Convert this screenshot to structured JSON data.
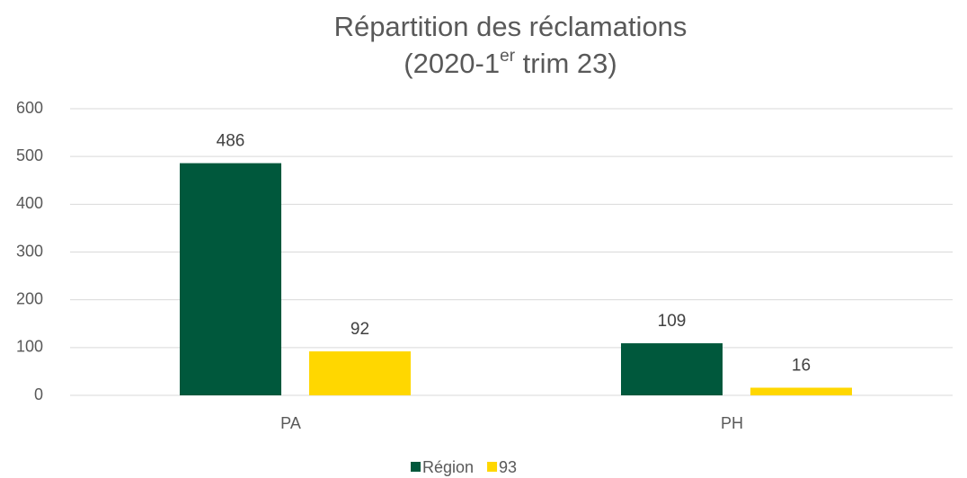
{
  "chart_data": {
    "type": "bar",
    "title": [
      "Répartition des réclamations",
      [
        "(2020-1",
        "er",
        " trim 23)"
      ]
    ],
    "categories": [
      "PA",
      "PH"
    ],
    "series": [
      {
        "name": "Région",
        "color": "#00583c",
        "values": [
          486,
          109
        ]
      },
      {
        "name": "93",
        "color": "#ffd700",
        "values": [
          92,
          16
        ]
      }
    ],
    "ylim": [
      0,
      600
    ],
    "yticks": [
      0,
      100,
      200,
      300,
      400,
      500,
      600
    ],
    "grid": true,
    "legend": "bottom"
  }
}
